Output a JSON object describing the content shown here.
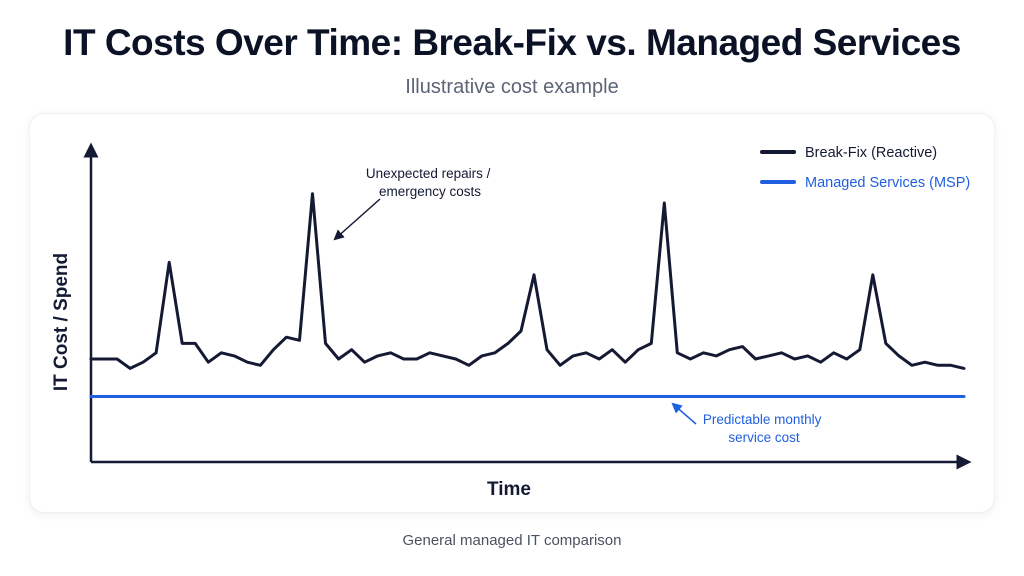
{
  "title": "IT Costs Over Time: Break-Fix vs. Managed Services",
  "subtitle": "Illustrative cost example",
  "footnote": "General managed IT comparison",
  "colors": {
    "break_fix": "#141a33",
    "msp": "#1f5fe0",
    "axis": "#141a33"
  },
  "chart_data": {
    "type": "line",
    "xlabel": "Time",
    "ylabel": "IT Cost / Spend",
    "grid": false,
    "legend_position": "top-right",
    "ylim": [
      0,
      100
    ],
    "xlim": [
      0,
      67
    ],
    "series": [
      {
        "name": "Break-Fix (Reactive)",
        "x": [
          0,
          2,
          3,
          4,
          5,
          6,
          7,
          8,
          9,
          10,
          11,
          12,
          13,
          14,
          15,
          16,
          17,
          18,
          19,
          20,
          21,
          22,
          23,
          24,
          25,
          26,
          27,
          28,
          29,
          30,
          31,
          32,
          33,
          34,
          35,
          36,
          37,
          38,
          39,
          40,
          41,
          42,
          43,
          44,
          45,
          46,
          47,
          48,
          49,
          50,
          51,
          52,
          53,
          54,
          55,
          56,
          57,
          58,
          59,
          60,
          61,
          62,
          63,
          64,
          65,
          66,
          67
        ],
        "values": [
          33,
          33,
          30,
          32,
          35,
          64,
          38,
          38,
          32,
          35,
          34,
          32,
          31,
          36,
          40,
          39,
          86,
          38,
          33,
          36,
          32,
          34,
          35,
          33,
          33,
          35,
          34,
          33,
          31,
          34,
          35,
          38,
          42,
          60,
          36,
          31,
          34,
          35,
          33,
          36,
          32,
          36,
          38,
          83,
          35,
          33,
          35,
          34,
          36,
          37,
          33,
          34,
          35,
          33,
          34,
          32,
          35,
          33,
          36,
          60,
          38,
          34,
          31,
          32,
          31,
          31,
          30
        ]
      },
      {
        "name": "Managed Services (MSP)",
        "x": [
          0,
          67
        ],
        "values": [
          21,
          21
        ]
      }
    ],
    "annotations": [
      {
        "text": [
          "Unexpected repairs /",
          "emergency costs"
        ],
        "points_to": "Break-Fix (Reactive) spike"
      },
      {
        "text": [
          "Predictable monthly",
          "service cost"
        ],
        "points_to": "Managed Services (MSP) line"
      }
    ]
  }
}
